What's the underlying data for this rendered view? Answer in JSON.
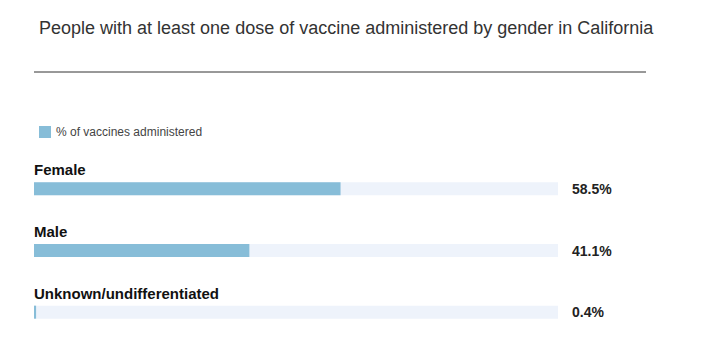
{
  "chart_data": {
    "type": "bar",
    "title": "People with at least one dose of vaccine administered by gender in California",
    "orientation": "horizontal",
    "categories": [
      "Female",
      "Male",
      "Unknown/undifferentiated"
    ],
    "series": [
      {
        "name": "% of vaccines administered",
        "color": "#87bdd8",
        "values": [
          58.5,
          41.1,
          0.4
        ],
        "value_labels": [
          "58.5%",
          "41.1%",
          "0.4%"
        ]
      }
    ],
    "xlim": [
      0,
      100
    ],
    "grid": false,
    "legend": "top-left",
    "data_labels": true,
    "tick_labels": false
  }
}
